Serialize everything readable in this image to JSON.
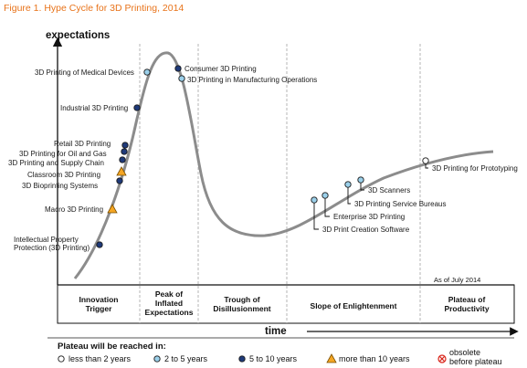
{
  "figure": {
    "title": "Figure 1. Hype Cycle for 3D Printing, 2014"
  },
  "axes": {
    "y_label": "expectations",
    "x_label": "time"
  },
  "as_of": "As of July 2014",
  "phases": [
    {
      "id": "innovation-trigger",
      "lines": [
        "Innovation",
        "Trigger"
      ]
    },
    {
      "id": "peak",
      "lines": [
        "Peak of",
        "Inflated",
        "Expectations"
      ]
    },
    {
      "id": "trough",
      "lines": [
        "Trough of",
        "Disillusionment"
      ]
    },
    {
      "id": "slope",
      "lines": [
        "Slope of Enlightenment"
      ]
    },
    {
      "id": "plateau",
      "lines": [
        "Plateau of",
        "Productivity"
      ]
    }
  ],
  "technologies": [
    {
      "id": "medical-devices",
      "lines": [
        "3D Printing of Medical Devices"
      ],
      "marker": "2-5"
    },
    {
      "id": "consumer",
      "lines": [
        "Consumer 3D Printing"
      ],
      "marker": "5-10"
    },
    {
      "id": "manufacturing-operations",
      "lines": [
        "3D Printing in Manufacturing Operations"
      ],
      "marker": "2-5"
    },
    {
      "id": "industrial",
      "lines": [
        "Industrial 3D Printing"
      ],
      "marker": "5-10"
    },
    {
      "id": "retail",
      "lines": [
        "Retail 3D Printing"
      ],
      "marker": "5-10"
    },
    {
      "id": "oil-gas",
      "lines": [
        "3D Printing for Oil and Gas"
      ],
      "marker": "5-10"
    },
    {
      "id": "supply-chain",
      "lines": [
        "3D Printing and Supply Chain"
      ],
      "marker": "5-10"
    },
    {
      "id": "classroom",
      "lines": [
        "Classroom 3D Printing"
      ],
      "marker": "more-10"
    },
    {
      "id": "bioprinting",
      "lines": [
        "3D Bioprinting Systems"
      ],
      "marker": "5-10"
    },
    {
      "id": "macro",
      "lines": [
        "Macro 3D Printing"
      ],
      "marker": "more-10"
    },
    {
      "id": "ip-protection",
      "lines": [
        "Intellectual Property",
        "Protection (3D Printing)"
      ],
      "marker": "5-10"
    },
    {
      "id": "print-creation-software",
      "lines": [
        "3D Print Creation Software"
      ],
      "marker": "2-5"
    },
    {
      "id": "enterprise",
      "lines": [
        "Enterprise 3D Printing"
      ],
      "marker": "2-5"
    },
    {
      "id": "service-bureaus",
      "lines": [
        "3D Printing Service Bureaus"
      ],
      "marker": "2-5"
    },
    {
      "id": "scanners",
      "lines": [
        "3D Scanners"
      ],
      "marker": "2-5"
    },
    {
      "id": "prototyping",
      "lines": [
        "3D Printing for Prototyping"
      ],
      "marker": "less-2"
    }
  ],
  "legend": {
    "title": "Plateau will be reached in:",
    "items": [
      {
        "id": "less-2",
        "label": "less than 2 years"
      },
      {
        "id": "2-5",
        "label": "2 to 5 years"
      },
      {
        "id": "5-10",
        "label": "5 to 10 years"
      },
      {
        "id": "more-10",
        "label": "more than 10 years"
      },
      {
        "id": "obsolete",
        "label": "obsolete before plateau"
      }
    ]
  },
  "colors": {
    "title": "#e8731a",
    "curve": "#8c8c8c",
    "less-2": "#ffffff",
    "2-5": "#9bd0ea",
    "5-10": "#1f3a7a",
    "more-10": "#f5a623",
    "obsolete": "#d9261c"
  }
}
